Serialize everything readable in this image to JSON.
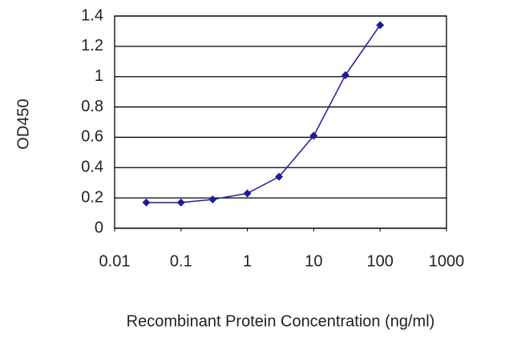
{
  "chart_data": {
    "type": "line",
    "x_label": "Recombinant Protein Concentration (ng/ml)",
    "y_label": "OD450",
    "x": [
      0.03,
      0.1,
      0.3,
      1,
      3,
      10,
      30,
      100
    ],
    "values": [
      0.17,
      0.17,
      0.19,
      0.23,
      0.34,
      0.61,
      1.01,
      1.34
    ],
    "color": "#1c1c9c",
    "xscale": "log",
    "xlim": [
      0.01,
      1000
    ],
    "xticks": [
      0.01,
      0.1,
      1,
      10,
      100,
      1000
    ],
    "ylim": [
      0,
      1.4
    ],
    "yticks": [
      0,
      0.2,
      0.4,
      0.6,
      0.8,
      1,
      1.2,
      1.4
    ],
    "grid": true
  }
}
